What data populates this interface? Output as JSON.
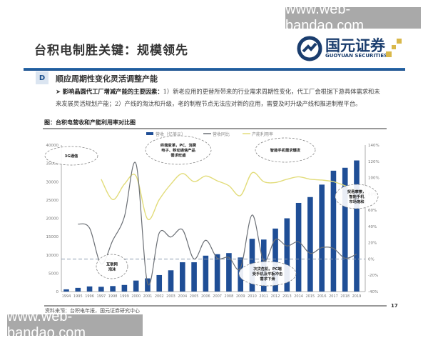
{
  "watermarks": {
    "top_right": "www.web-bandao.com",
    "bottom_left": "www.web-bandao.com"
  },
  "slide": {
    "title": "台积电制胜关键：规模领先",
    "logo": {
      "cn": "国元证券",
      "en": "GUOYUAN SECURITIES"
    },
    "section": {
      "letter": "D",
      "title": "顺应周期性变化灵活调整产能"
    },
    "bullet": {
      "lead": "影响晶圆代工厂增减产能的主要因素：",
      "body": "1）新老应用的更替所带来的行业需求周期性变化，代工厂会根据下游具体需求和未来发展灵活规划产能；2）产线的淘汰和升级，老的制程节点无法应对新的应用，需要及时升级产线和推进制程平台。"
    },
    "figure_caption": "图：台积电营收和产能利用率对比图",
    "source": "资料来源：台积电年报，国元证券研究中心",
    "page_number": "17"
  },
  "colors": {
    "bars": "#1f4e96",
    "growth": "#6b6f75",
    "utilization": "#e2dc7a",
    "brand_blue": "#1b4f8c",
    "logo_gold": "#d9b84a"
  },
  "chart_data": {
    "type": "bar+line",
    "categories": [
      "1994",
      "1995",
      "1996",
      "1997",
      "1998",
      "1999",
      "2000",
      "2001",
      "2002",
      "2003",
      "2004",
      "2005",
      "2006",
      "2007",
      "2008",
      "2009",
      "2010",
      "2011",
      "2012",
      "2013",
      "2014",
      "2015",
      "2016",
      "2017",
      "2018",
      "2019"
    ],
    "series": [
      {
        "name": "营收（亿美元）",
        "type": "bar",
        "axis": "left",
        "values": [
          600,
          1000,
          1400,
          1300,
          1500,
          1800,
          3000,
          3600,
          4500,
          5800,
          8000,
          8000,
          9800,
          10200,
          10500,
          9300,
          14400,
          14200,
          17200,
          20000,
          24200,
          25800,
          29200,
          33000,
          33800,
          35800
        ]
      },
      {
        "name": "营收同比",
        "type": "line",
        "axis": "right",
        "unit": "%",
        "values": [
          null,
          43,
          38,
          -6,
          23,
          52,
          117,
          -30,
          32,
          27,
          36,
          0,
          23,
          1,
          2,
          -11,
          54,
          -2,
          24,
          16,
          21,
          7,
          14,
          13,
          1,
          6
        ]
      },
      {
        "name": "产能利用率",
        "type": "line",
        "axis": "right",
        "unit": "%",
        "values": [
          null,
          null,
          null,
          98,
          73,
          92,
          102,
          49,
          73,
          92,
          105,
          95,
          102,
          96,
          90,
          78,
          106,
          95,
          94,
          98,
          101,
          98,
          97,
          95,
          90,
          84
        ]
      }
    ],
    "left_axis": {
      "range": [
        0,
        40000
      ],
      "ticks": [
        "0",
        "5000",
        "10000",
        "15000",
        "20000",
        "25000",
        "30000",
        "35000",
        "40000"
      ]
    },
    "right_axis": {
      "range": [
        -40,
        140
      ],
      "ticks": [
        "-40%",
        "-20%",
        "0%",
        "20%",
        "40%",
        "60%",
        "80%",
        "100%",
        "120%",
        "140%"
      ]
    },
    "reference_line": {
      "axis": "right",
      "value": 0,
      "style": "dashed"
    },
    "legend_position": "top",
    "grid": false,
    "annotations": [
      {
        "text": [
          "3G通信"
        ],
        "year": "1996"
      },
      {
        "text": [
          "终端变革，PC、消费",
          "电子、移动通信产品",
          "需求旺盛"
        ],
        "year": "2004"
      },
      {
        "text": [
          "智能手机需求爆发"
        ],
        "year": "2012"
      },
      {
        "text": [
          "互联网",
          "泡沫"
        ],
        "year": "2000"
      },
      {
        "text": [
          "次贷危机，PC端",
          "受手机及平板冲击",
          "需求下滑"
        ],
        "year": "2010"
      },
      {
        "text": [
          "贸易摩擦，",
          "智能手机",
          "市场饱和"
        ],
        "year": "2018"
      }
    ]
  }
}
